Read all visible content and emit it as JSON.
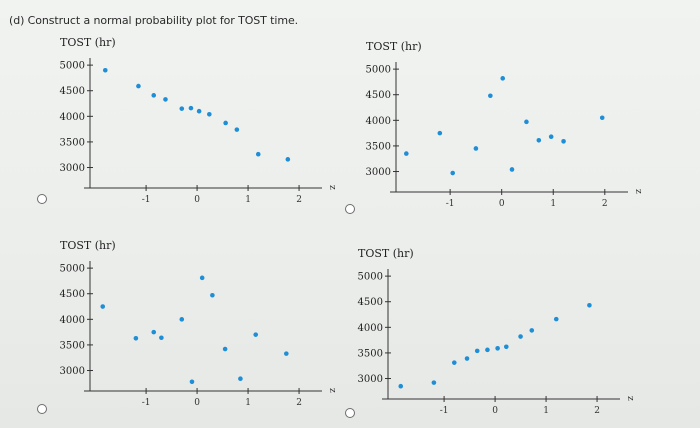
{
  "question": "(d) Construct a normal probability plot for TOST time.",
  "colors": {
    "point": "#1e8fd6",
    "axis": "#333333"
  },
  "chart_data": [
    {
      "type": "scatter",
      "ylabel": "TOST (hr)",
      "xlabel": "z",
      "yticks": [
        3000,
        3500,
        4000,
        4500,
        5000
      ],
      "xticks": [
        "-1",
        "0",
        "1",
        "2"
      ],
      "xlim": [
        -2.1,
        2.45
      ],
      "ylim": [
        2600,
        5100
      ],
      "points": [
        {
          "x": -1.8,
          "y": 4900
        },
        {
          "x": -1.15,
          "y": 4590
        },
        {
          "x": -0.85,
          "y": 4410
        },
        {
          "x": -0.62,
          "y": 4330
        },
        {
          "x": -0.3,
          "y": 4150
        },
        {
          "x": -0.12,
          "y": 4160
        },
        {
          "x": 0.04,
          "y": 4100
        },
        {
          "x": 0.24,
          "y": 4040
        },
        {
          "x": 0.56,
          "y": 3870
        },
        {
          "x": 0.78,
          "y": 3740
        },
        {
          "x": 1.2,
          "y": 3260
        },
        {
          "x": 1.78,
          "y": 3160
        }
      ]
    },
    {
      "type": "scatter",
      "ylabel": "TOST (hr)",
      "xlabel": "z",
      "yticks": [
        3000,
        3500,
        4000,
        4500,
        5000
      ],
      "xticks": [
        "-1",
        "0",
        "1",
        "2"
      ],
      "xlim": [
        -2.05,
        2.45
      ],
      "ylim": [
        2600,
        5100
      ],
      "points": [
        {
          "x": -1.85,
          "y": 3350
        },
        {
          "x": -1.2,
          "y": 3750
        },
        {
          "x": -0.95,
          "y": 2970
        },
        {
          "x": -0.5,
          "y": 3450
        },
        {
          "x": -0.22,
          "y": 4480
        },
        {
          "x": 0.02,
          "y": 4820
        },
        {
          "x": 0.2,
          "y": 3040
        },
        {
          "x": 0.48,
          "y": 3970
        },
        {
          "x": 0.72,
          "y": 3610
        },
        {
          "x": 0.96,
          "y": 3680
        },
        {
          "x": 1.2,
          "y": 3590
        },
        {
          "x": 1.95,
          "y": 4050
        }
      ]
    },
    {
      "type": "scatter",
      "ylabel": "TOST (hr)",
      "xlabel": "z",
      "yticks": [
        3000,
        3500,
        4000,
        4500,
        5000
      ],
      "xticks": [
        "-1",
        "0",
        "1",
        "2"
      ],
      "xlim": [
        -2.1,
        2.45
      ],
      "ylim": [
        2600,
        5100
      ],
      "points": [
        {
          "x": -1.85,
          "y": 4250
        },
        {
          "x": -1.2,
          "y": 3630
        },
        {
          "x": -0.85,
          "y": 3750
        },
        {
          "x": -0.7,
          "y": 3640
        },
        {
          "x": -0.3,
          "y": 4000
        },
        {
          "x": -0.1,
          "y": 2780
        },
        {
          "x": 0.1,
          "y": 4810
        },
        {
          "x": 0.3,
          "y": 4470
        },
        {
          "x": 0.55,
          "y": 3420
        },
        {
          "x": 0.85,
          "y": 2840
        },
        {
          "x": 1.15,
          "y": 3700
        },
        {
          "x": 1.75,
          "y": 3330
        }
      ]
    },
    {
      "type": "scatter",
      "ylabel": "TOST (hr)",
      "xlabel": "z",
      "yticks": [
        3000,
        3500,
        4000,
        4500,
        5000
      ],
      "xticks": [
        "-1",
        "0",
        "1",
        "2"
      ],
      "xlim": [
        -2.1,
        2.45
      ],
      "ylim": [
        2600,
        5100
      ],
      "points": [
        {
          "x": -1.85,
          "y": 2850
        },
        {
          "x": -1.2,
          "y": 2920
        },
        {
          "x": -0.8,
          "y": 3310
        },
        {
          "x": -0.55,
          "y": 3390
        },
        {
          "x": -0.35,
          "y": 3540
        },
        {
          "x": -0.15,
          "y": 3560
        },
        {
          "x": 0.05,
          "y": 3590
        },
        {
          "x": 0.22,
          "y": 3620
        },
        {
          "x": 0.5,
          "y": 3820
        },
        {
          "x": 0.72,
          "y": 3940
        },
        {
          "x": 1.2,
          "y": 4160
        },
        {
          "x": 1.85,
          "y": 4430
        }
      ]
    }
  ]
}
